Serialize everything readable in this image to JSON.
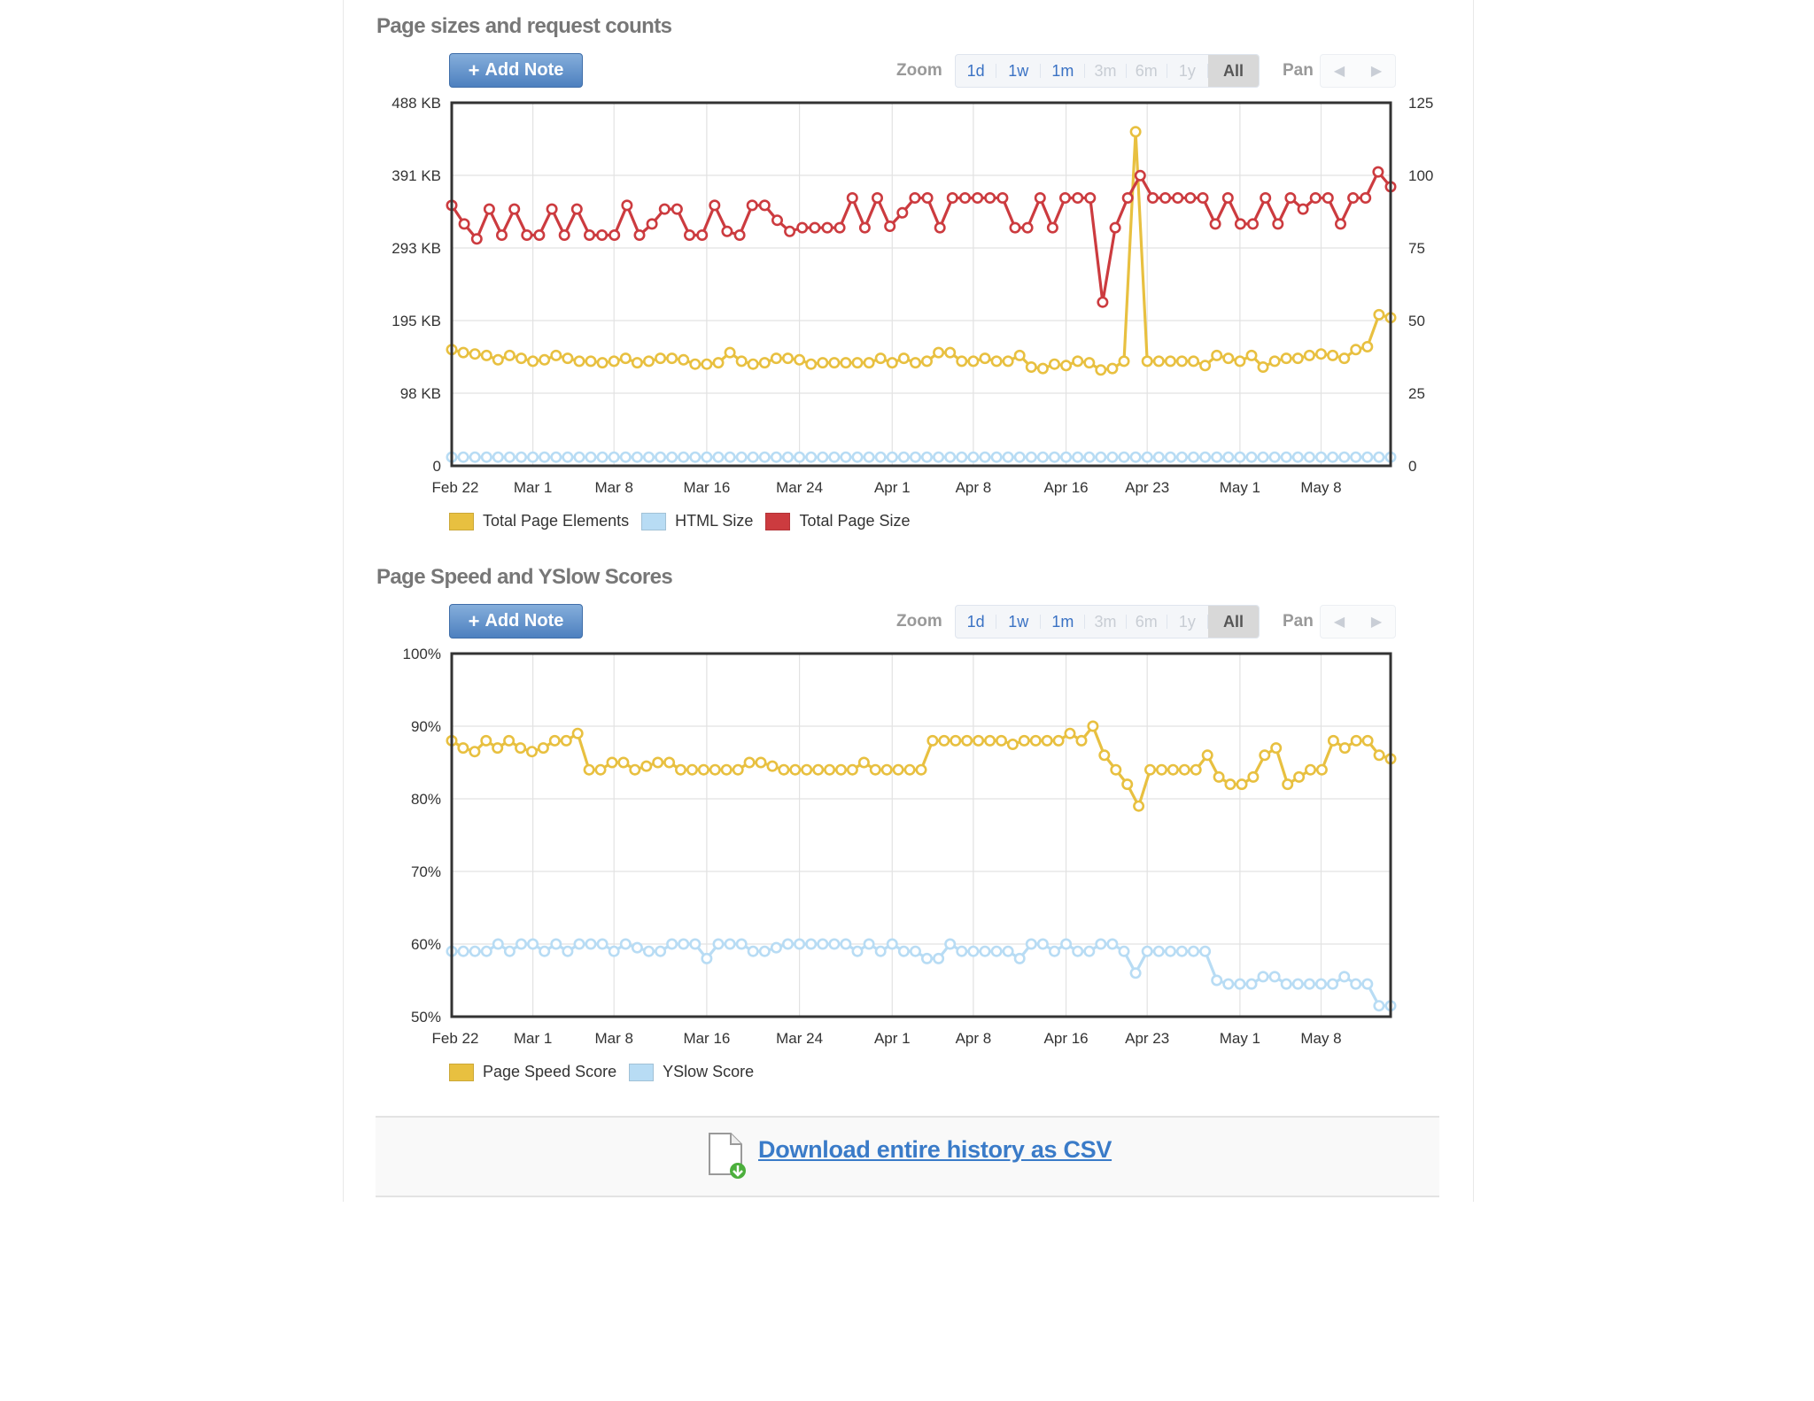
{
  "controls": {
    "add_note": "Add Note",
    "add_note_plus": "+",
    "zoom_label": "Zoom",
    "pan_label": "Pan",
    "zoom_options": [
      {
        "label": "1d",
        "state": "enabled"
      },
      {
        "label": "1w",
        "state": "enabled"
      },
      {
        "label": "1m",
        "state": "enabled"
      },
      {
        "label": "3m",
        "state": "disabled"
      },
      {
        "label": "6m",
        "state": "disabled"
      },
      {
        "label": "1y",
        "state": "disabled"
      },
      {
        "label": "All",
        "state": "active"
      }
    ],
    "pan_left_icon": "triangle-left-icon",
    "pan_right_icon": "triangle-right-icon"
  },
  "colors": {
    "yellow": "#e8c040",
    "blue": "#b8dcf4",
    "red": "#cc3b3f",
    "grid": "#e2e2e2",
    "frame": "#333333"
  },
  "chart_data": [
    {
      "type": "line",
      "title": "Page sizes and request counts",
      "x_ticks": [
        "Feb 22",
        "Mar 1",
        "Mar 8",
        "Mar 16",
        "Mar 24",
        "Apr 1",
        "Apr 8",
        "Apr 16",
        "Apr 23",
        "May 1",
        "May 8"
      ],
      "x_tick_days": [
        0,
        7,
        14,
        22,
        30,
        38,
        45,
        53,
        60,
        68,
        75
      ],
      "x_range": [
        0,
        81
      ],
      "left_axis": {
        "ticks": [
          "0",
          "98 KB",
          "195 KB",
          "293 KB",
          "391 KB",
          "488 KB"
        ],
        "ylim": [
          0,
          488
        ],
        "unit": "KB"
      },
      "right_axis": {
        "ticks": [
          "0",
          "25",
          "50",
          "75",
          "100",
          "125"
        ],
        "ylim": [
          0,
          125
        ]
      },
      "legend": [
        "Total Page Elements",
        "HTML Size",
        "Total Page Size"
      ],
      "series": [
        {
          "name": "Total Page Elements",
          "axis": "right",
          "color": "#e8c040",
          "values": [
            40,
            39,
            38.5,
            38,
            36.5,
            38,
            37,
            36,
            36.5,
            38,
            37,
            36,
            36,
            35.5,
            36,
            37,
            35.5,
            36,
            37,
            37,
            36.5,
            35,
            35,
            35.5,
            39,
            36,
            35,
            35.5,
            37,
            37,
            36.5,
            35,
            35.5,
            35.5,
            35.5,
            35.5,
            35.5,
            37,
            35.5,
            37,
            35.5,
            36,
            39,
            39,
            36,
            36,
            37,
            36,
            36,
            38,
            34,
            33.5,
            35,
            34.5,
            36,
            35.5,
            33,
            33.5,
            36,
            115,
            36,
            36,
            36,
            36,
            36,
            34.5,
            38,
            37,
            36,
            38,
            34,
            36,
            37,
            37,
            38,
            38.5,
            38,
            37,
            40,
            41,
            52,
            51
          ]
        },
        {
          "name": "HTML Size",
          "axis": "right",
          "color": "#b8dcf4",
          "values": [
            3,
            3,
            3,
            3,
            3,
            3,
            3,
            3,
            3,
            3,
            3,
            3,
            3,
            3,
            3,
            3,
            3,
            3,
            3,
            3,
            3,
            3,
            3,
            3,
            3,
            3,
            3,
            3,
            3,
            3,
            3,
            3,
            3,
            3,
            3,
            3,
            3,
            3,
            3,
            3,
            3,
            3,
            3,
            3,
            3,
            3,
            3,
            3,
            3,
            3,
            3,
            3,
            3,
            3,
            3,
            3,
            3,
            3,
            3,
            3,
            3,
            3,
            3,
            3,
            3,
            3,
            3,
            3,
            3,
            3,
            3,
            3,
            3,
            3,
            3,
            3,
            3,
            3,
            3,
            3,
            3,
            3
          ]
        },
        {
          "name": "Total Page Size",
          "axis": "left",
          "color": "#cc3b3f",
          "values": [
            350,
            325,
            305,
            345,
            310,
            345,
            310,
            310,
            345,
            310,
            345,
            310,
            310,
            310,
            350,
            310,
            325,
            345,
            345,
            310,
            310,
            350,
            315,
            310,
            350,
            350,
            330,
            315,
            320,
            320,
            320,
            320,
            360,
            320,
            360,
            322,
            340,
            360,
            360,
            320,
            360,
            360,
            360,
            360,
            360,
            320,
            320,
            360,
            320,
            360,
            360,
            360,
            220,
            320,
            360,
            390,
            360,
            360,
            360,
            360,
            360,
            325,
            360,
            325,
            325,
            360,
            325,
            360,
            345,
            360,
            360,
            325,
            360,
            360,
            395,
            375
          ]
        }
      ]
    },
    {
      "type": "line",
      "title": "Page Speed and YSlow Scores",
      "x_ticks": [
        "Feb 22",
        "Mar 1",
        "Mar 8",
        "Mar 16",
        "Mar 24",
        "Apr 1",
        "Apr 8",
        "Apr 16",
        "Apr 23",
        "May 1",
        "May 8"
      ],
      "x_tick_days": [
        0,
        7,
        14,
        22,
        30,
        38,
        45,
        53,
        60,
        68,
        75
      ],
      "x_range": [
        0,
        81
      ],
      "left_axis": {
        "ticks": [
          "50%",
          "60%",
          "70%",
          "80%",
          "90%",
          "100%"
        ],
        "ylim": [
          50,
          100
        ]
      },
      "legend": [
        "Page Speed Score",
        "YSlow Score"
      ],
      "series": [
        {
          "name": "Page Speed Score",
          "color": "#e8c040",
          "values": [
            88,
            87,
            86.5,
            88,
            87,
            88,
            87,
            86.5,
            87,
            88,
            88,
            89,
            84,
            84,
            85,
            85,
            84,
            84.5,
            85,
            85,
            84,
            84,
            84,
            84,
            84,
            84,
            85,
            85,
            84.5,
            84,
            84,
            84,
            84,
            84,
            84,
            84,
            85,
            84,
            84,
            84,
            84,
            84,
            88,
            88,
            88,
            88,
            88,
            88,
            88,
            87.5,
            88,
            88,
            88,
            88,
            89,
            88,
            90,
            86,
            84,
            82,
            79,
            84,
            84,
            84,
            84,
            84,
            86,
            83,
            82,
            82,
            83,
            86,
            87,
            82,
            83,
            84,
            84,
            88,
            87,
            88,
            88,
            86,
            85.5
          ]
        },
        {
          "name": "YSlow Score",
          "color": "#b8dcf4",
          "values": [
            59,
            59,
            59,
            59,
            60,
            59,
            60,
            60,
            59,
            60,
            59,
            60,
            60,
            60,
            59,
            60,
            59.5,
            59,
            59,
            60,
            60,
            60,
            58,
            60,
            60,
            60,
            59,
            59,
            59.5,
            60,
            60,
            60,
            60,
            60,
            60,
            59,
            60,
            59,
            60,
            59,
            59,
            58,
            58,
            60,
            59,
            59,
            59,
            59,
            59,
            58,
            60,
            60,
            59,
            60,
            59,
            59,
            60,
            60,
            59,
            56,
            59,
            59,
            59,
            59,
            59,
            59,
            55,
            54.5,
            54.5,
            54.5,
            55.5,
            55.5,
            54.5,
            54.5,
            54.5,
            54.5,
            54.5,
            55.5,
            54.5,
            54.5,
            51.5,
            51.5
          ]
        }
      ]
    }
  ],
  "download": {
    "icon": "csv-file-download-icon",
    "link_text": "Download entire history as CSV"
  }
}
